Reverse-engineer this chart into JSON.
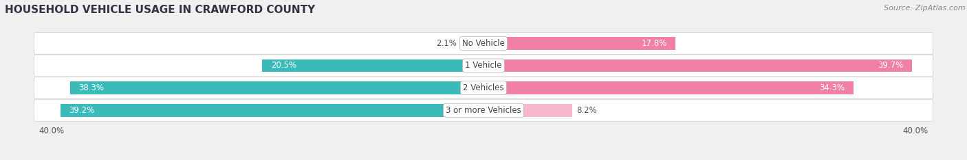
{
  "title": "HOUSEHOLD VEHICLE USAGE IN CRAWFORD COUNTY",
  "source": "Source: ZipAtlas.com",
  "categories": [
    "No Vehicle",
    "1 Vehicle",
    "2 Vehicles",
    "3 or more Vehicles"
  ],
  "owner_values": [
    2.1,
    20.5,
    38.3,
    39.2
  ],
  "renter_values": [
    17.8,
    39.7,
    34.3,
    8.2
  ],
  "owner_colors": [
    "#7ECFCF",
    "#3BBABA",
    "#3BBABA",
    "#3BBABA"
  ],
  "renter_colors": [
    "#F080A8",
    "#F080A8",
    "#F080A8",
    "#F5B8CC"
  ],
  "owner_color_legend": "#3BBABA",
  "renter_color_legend": "#F080A8",
  "xlim": 40.0,
  "background_color": "#f0f0f0",
  "bar_bg_color": "#e0e0e0",
  "row_bg_color": "#ffffff",
  "title_fontsize": 11,
  "source_fontsize": 8,
  "label_fontsize": 8.5,
  "axis_label_fontsize": 8.5
}
